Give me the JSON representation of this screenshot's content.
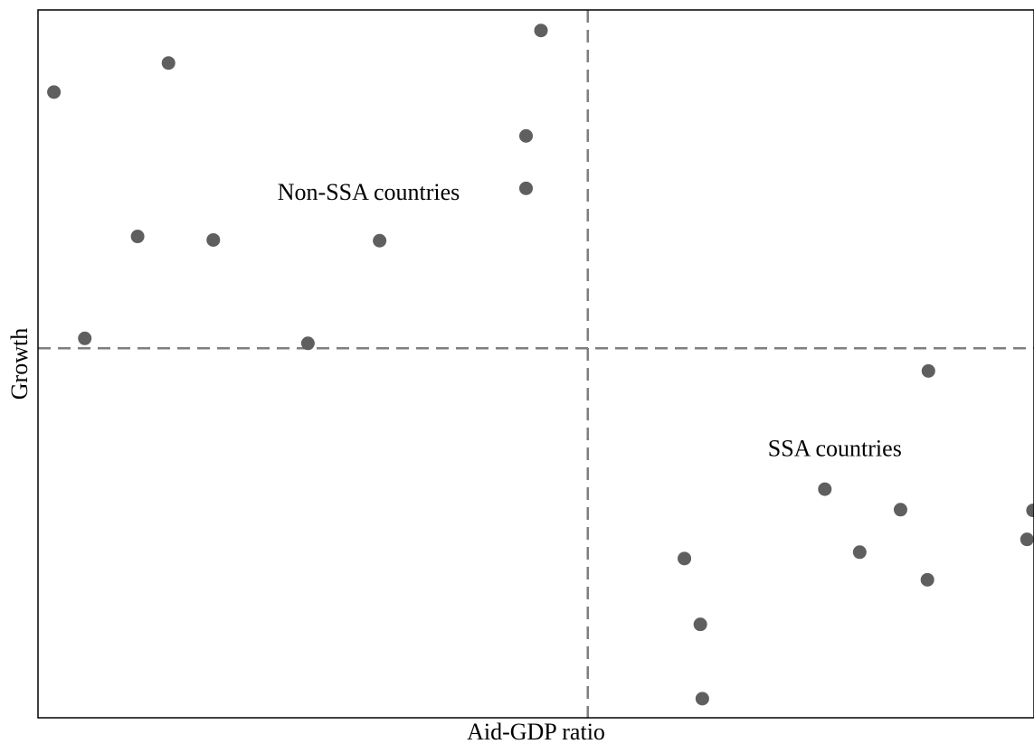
{
  "chart_data": {
    "type": "scatter",
    "title": "",
    "xlabel": "Aid-GDP ratio",
    "ylabel": "Growth",
    "xlim": [
      0,
      100
    ],
    "ylim": [
      0,
      100
    ],
    "grid": false,
    "reference_lines": {
      "x": 55.2,
      "y": 52.2,
      "style": "dashed",
      "color": "#7f7f7f"
    },
    "annotations": [
      {
        "text": "Non-SSA countries",
        "x": 33.2,
        "y": 73.2
      },
      {
        "text": "SSA countries",
        "x": 80.0,
        "y": 37.0
      }
    ],
    "series": [
      {
        "color": "#5f5f5f",
        "points": [
          {
            "x": 1.6,
            "y": 88.4
          },
          {
            "x": 13.1,
            "y": 92.5
          },
          {
            "x": 50.5,
            "y": 97.1
          },
          {
            "x": 49.0,
            "y": 82.2
          },
          {
            "x": 49.0,
            "y": 74.8
          },
          {
            "x": 10.0,
            "y": 68.0
          },
          {
            "x": 17.6,
            "y": 67.5
          },
          {
            "x": 34.3,
            "y": 67.4
          },
          {
            "x": 4.7,
            "y": 53.6
          },
          {
            "x": 27.1,
            "y": 52.9
          }
        ]
      },
      {
        "color": "#5f5f5f",
        "points": [
          {
            "x": 89.4,
            "y": 49.0
          },
          {
            "x": 79.0,
            "y": 32.3
          },
          {
            "x": 86.6,
            "y": 29.4
          },
          {
            "x": 99.9,
            "y": 29.3
          },
          {
            "x": 82.5,
            "y": 23.4
          },
          {
            "x": 99.3,
            "y": 25.2
          },
          {
            "x": 89.3,
            "y": 19.5
          },
          {
            "x": 64.9,
            "y": 22.5
          },
          {
            "x": 66.5,
            "y": 13.2
          },
          {
            "x": 66.7,
            "y": 2.7
          }
        ]
      }
    ]
  }
}
